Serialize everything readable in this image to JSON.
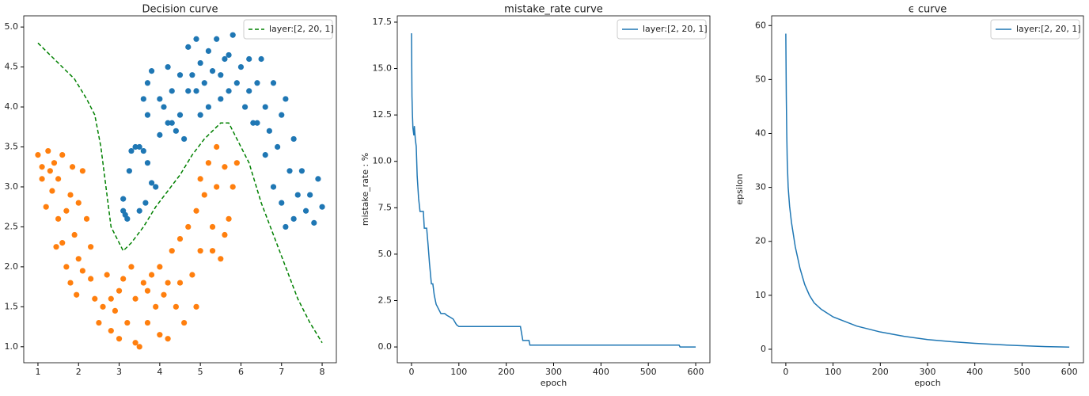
{
  "chart_data": [
    {
      "type": "scatter",
      "title": "Decision curve",
      "xlim": [
        0.65,
        8.35
      ],
      "ylim": [
        0.8,
        5.14
      ],
      "xticks": [
        1,
        2,
        3,
        4,
        5,
        6,
        7,
        8
      ],
      "yticks": [
        {
          "value": 1,
          "label": "1.0"
        },
        1.5,
        {
          "value": 2,
          "label": "2.0"
        },
        2.5,
        {
          "value": 3,
          "label": "3.0"
        },
        3.5,
        {
          "value": 4,
          "label": "4.0"
        },
        4.5,
        {
          "value": 5,
          "label": "5.0"
        }
      ],
      "legend": "upper right",
      "series": [
        {
          "type": "scatter",
          "color": "#1f77b4",
          "x": [
            3.1,
            3.15,
            3.2,
            3.1,
            3.3,
            3.25,
            3.4,
            3.5,
            3.6,
            3.5,
            3.7,
            3.65,
            3.6,
            3.7,
            3.7,
            3.8,
            3.8,
            3.9,
            4.0,
            4.0,
            4.1,
            4.2,
            4.2,
            4.3,
            4.4,
            4.5,
            4.6,
            4.7,
            4.7,
            4.8,
            4.9,
            5.0,
            5.1,
            5.2,
            5.2,
            5.3,
            5.4,
            5.5,
            5.6,
            5.7,
            5.8,
            5.9,
            6.0,
            6.1,
            6.2,
            6.3,
            6.4,
            6.5,
            6.6,
            6.7,
            6.8,
            6.9,
            7.0,
            7.1,
            7.2,
            7.3,
            7.4,
            7.5,
            7.6,
            7.7,
            7.8,
            7.9,
            8.0,
            7.3,
            7.0,
            6.8,
            6.6,
            6.4,
            5.7,
            5.0,
            4.5,
            4.3,
            4.9,
            5.5,
            6.2,
            7.1
          ],
          "values": [
            2.7,
            2.65,
            2.6,
            2.85,
            3.45,
            3.2,
            3.5,
            3.5,
            3.45,
            2.7,
            3.3,
            2.8,
            4.1,
            3.9,
            4.3,
            4.45,
            3.05,
            3.0,
            3.65,
            4.1,
            4.0,
            4.5,
            3.8,
            4.2,
            3.7,
            4.4,
            3.6,
            4.2,
            4.75,
            4.4,
            4.85,
            4.55,
            4.3,
            4.7,
            4.0,
            4.45,
            4.85,
            4.1,
            4.6,
            4.65,
            4.9,
            4.3,
            4.5,
            4.0,
            4.6,
            3.8,
            4.3,
            4.6,
            4.0,
            3.7,
            4.3,
            3.5,
            3.9,
            4.1,
            3.2,
            3.6,
            2.9,
            3.2,
            2.7,
            2.9,
            2.55,
            3.1,
            2.75,
            2.6,
            2.8,
            3.0,
            3.4,
            3.8,
            4.2,
            3.9,
            3.9,
            3.8,
            4.2,
            4.4,
            4.2,
            2.5
          ]
        },
        {
          "type": "scatter",
          "color": "#ff7f0e",
          "x": [
            1.0,
            1.1,
            1.2,
            1.25,
            1.3,
            1.35,
            1.4,
            1.5,
            1.5,
            1.6,
            1.6,
            1.7,
            1.7,
            1.8,
            1.8,
            1.85,
            1.9,
            1.95,
            2.0,
            2.0,
            2.1,
            2.1,
            2.2,
            2.3,
            2.3,
            2.4,
            2.5,
            2.6,
            2.7,
            2.8,
            2.9,
            3.0,
            3.0,
            3.1,
            3.2,
            3.3,
            3.4,
            3.4,
            3.5,
            3.6,
            3.7,
            3.8,
            3.9,
            4.0,
            4.0,
            4.1,
            4.2,
            4.3,
            4.4,
            4.5,
            4.5,
            4.6,
            4.7,
            4.8,
            4.9,
            4.9,
            5.0,
            5.0,
            5.1,
            5.2,
            5.3,
            5.4,
            5.4,
            5.5,
            5.6,
            5.7,
            5.8,
            5.9,
            5.6,
            5.3,
            4.2,
            3.7,
            2.8,
            1.45,
            1.1
          ],
          "values": [
            3.4,
            3.1,
            2.75,
            3.45,
            3.2,
            2.95,
            3.3,
            2.6,
            3.1,
            2.3,
            3.4,
            2.0,
            2.7,
            1.8,
            2.9,
            3.25,
            2.4,
            1.65,
            2.1,
            2.8,
            1.95,
            3.2,
            2.6,
            1.85,
            2.25,
            1.6,
            1.3,
            1.5,
            1.9,
            1.2,
            1.45,
            1.7,
            1.1,
            1.85,
            1.3,
            2.0,
            1.05,
            1.6,
            1.0,
            1.8,
            1.3,
            1.9,
            1.5,
            1.15,
            2.0,
            1.65,
            1.1,
            2.2,
            1.5,
            1.8,
            2.35,
            1.3,
            2.5,
            1.9,
            2.7,
            1.5,
            3.1,
            2.2,
            2.9,
            3.3,
            2.5,
            3.0,
            3.5,
            2.1,
            3.25,
            2.6,
            3.0,
            3.3,
            2.4,
            2.2,
            1.8,
            1.7,
            1.6,
            2.25,
            3.25
          ]
        },
        {
          "type": "line",
          "name": "layer:[2, 20, 1]",
          "color": "#008000",
          "dashed": true,
          "x": [
            1,
            1.5,
            1.9,
            2.2,
            2.4,
            2.55,
            2.7,
            2.8,
            2.95,
            3.1,
            3.3,
            3.6,
            3.9,
            4.2,
            4.5,
            4.8,
            5.1,
            5.5,
            5.7,
            5.9,
            6.2,
            6.5,
            6.8,
            7.1,
            7.4,
            7.7,
            8.0
          ],
          "values": [
            4.8,
            4.55,
            4.35,
            4.1,
            3.9,
            3.5,
            2.9,
            2.5,
            2.35,
            2.2,
            2.3,
            2.5,
            2.75,
            2.95,
            3.15,
            3.4,
            3.6,
            3.8,
            3.8,
            3.6,
            3.3,
            2.8,
            2.4,
            2.0,
            1.6,
            1.3,
            1.05
          ]
        }
      ]
    },
    {
      "type": "line",
      "title": "mistake_rate curve",
      "xlabel": "epoch",
      "ylabel": "mistake_rate : %",
      "xlim": [
        -30,
        630
      ],
      "ylim": [
        -0.85,
        17.84
      ],
      "xticks": [
        0,
        100,
        200,
        300,
        400,
        500,
        600
      ],
      "yticks": [
        {
          "value": 0,
          "label": "0.0"
        },
        2.5,
        {
          "value": 5,
          "label": "5.0"
        },
        7.5,
        {
          "value": 10,
          "label": "10.0"
        },
        12.5,
        {
          "value": 15,
          "label": "15.0"
        },
        17.5
      ],
      "legend": "upper right",
      "x": [
        0,
        1,
        2,
        3,
        5,
        6,
        8,
        10,
        12,
        15,
        18,
        25,
        27,
        32,
        35,
        38,
        42,
        45,
        48,
        52,
        58,
        62,
        70,
        75,
        82,
        88,
        95,
        100,
        230,
        232,
        235,
        248,
        250,
        565,
        567,
        600
      ],
      "series": [
        {
          "name": "layer:[2, 20, 1]",
          "color": "#1f77b4",
          "values": [
            16.9,
            13.5,
            12.5,
            11.8,
            11.4,
            11.9,
            11.2,
            10.8,
            9.2,
            8.0,
            7.3,
            7.3,
            6.4,
            6.4,
            5.5,
            4.5,
            3.4,
            3.4,
            2.8,
            2.3,
            2.0,
            1.8,
            1.8,
            1.7,
            1.6,
            1.5,
            1.2,
            1.1,
            1.1,
            0.8,
            0.35,
            0.35,
            0.1,
            0.1,
            0.0,
            0.0
          ]
        }
      ]
    },
    {
      "type": "line",
      "title": "ϵ curve",
      "xlabel": "epoch",
      "ylabel": "epsilon",
      "xlim": [
        -30,
        630
      ],
      "ylim": [
        -2.5,
        61.8
      ],
      "xticks": [
        0,
        100,
        200,
        300,
        400,
        500,
        600
      ],
      "yticks": [
        0,
        10,
        20,
        30,
        40,
        50,
        60
      ],
      "legend": "upper right",
      "x": [
        0,
        1,
        2,
        3,
        5,
        8,
        12,
        20,
        30,
        40,
        50,
        60,
        75,
        100,
        150,
        200,
        250,
        300,
        350,
        400,
        450,
        500,
        550,
        600
      ],
      "series": [
        {
          "name": "layer:[2, 20, 1]",
          "color": "#1f77b4",
          "values": [
            58.5,
            47,
            40,
            35,
            30,
            26.5,
            23.5,
            19,
            15,
            12,
            10,
            8.6,
            7.4,
            6.0,
            4.3,
            3.2,
            2.4,
            1.8,
            1.4,
            1.1,
            0.85,
            0.65,
            0.5,
            0.4
          ]
        }
      ]
    }
  ]
}
